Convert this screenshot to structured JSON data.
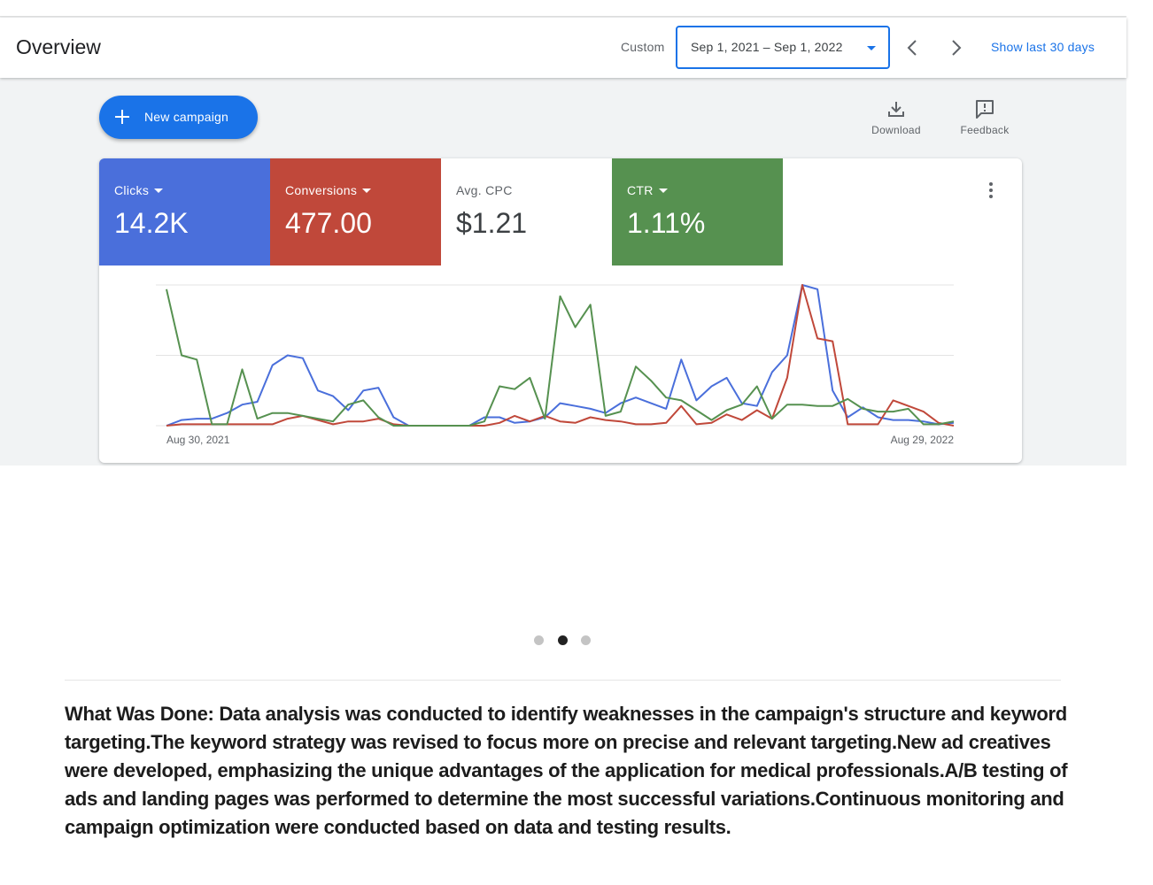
{
  "header": {
    "title": "Overview",
    "range_label": "Custom",
    "date_range": "Sep 1, 2021 – Sep 1, 2022",
    "quick_range_link": "Show last 30 days"
  },
  "toolbar": {
    "new_campaign_label": "New campaign",
    "download_label": "Download",
    "feedback_label": "Feedback"
  },
  "metrics": [
    {
      "name": "Clicks",
      "value": "14.2K",
      "color": "#4a6fdb"
    },
    {
      "name": "Conversions",
      "value": "477.00",
      "color": "#c0483a"
    },
    {
      "name": "Avg. CPC",
      "value": "$1.21",
      "color": "#ffffff"
    },
    {
      "name": "CTR",
      "value": "1.11%",
      "color": "#569150"
    }
  ],
  "chart_data": {
    "type": "line",
    "x_start_label": "Aug 30, 2021",
    "x_end_label": "Aug 29, 2022",
    "ylim": [
      0,
      100
    ],
    "grid": true,
    "legend": "none",
    "series": [
      {
        "color": "#4a6fdb",
        "values": [
          0,
          4,
          5,
          5,
          9,
          15,
          17,
          43,
          50,
          48,
          25,
          21,
          11,
          25,
          27,
          6,
          0,
          0,
          0,
          0,
          0,
          6,
          6,
          2,
          3,
          6,
          16,
          14,
          12,
          9,
          16,
          20,
          16,
          12,
          47,
          18,
          28,
          34,
          16,
          14,
          38,
          50,
          100,
          97,
          25,
          6,
          13,
          6,
          4,
          4,
          3,
          1,
          2
        ]
      },
      {
        "color": "#c0483a",
        "values": [
          0,
          1,
          1,
          1,
          1,
          1,
          1,
          1,
          5,
          7,
          4,
          1,
          3,
          3,
          5,
          1,
          0,
          0,
          0,
          0,
          0,
          0,
          2,
          7,
          3,
          7,
          3,
          2,
          6,
          4,
          3,
          1,
          1,
          2,
          14,
          1,
          2,
          8,
          4,
          11,
          5,
          34,
          100,
          62,
          60,
          1,
          1,
          1,
          18,
          14,
          10,
          2,
          0
        ]
      },
      {
        "color": "#569150",
        "values": [
          97,
          50,
          47,
          1,
          1,
          40,
          5,
          9,
          9,
          7,
          5,
          3,
          15,
          18,
          6,
          0,
          0,
          0,
          0,
          0,
          0,
          3,
          28,
          26,
          34,
          5,
          92,
          70,
          86,
          7,
          10,
          42,
          32,
          20,
          18,
          11,
          4,
          11,
          15,
          28,
          5,
          15,
          15,
          14,
          14,
          19,
          12,
          10,
          10,
          12,
          1,
          1,
          3
        ]
      }
    ]
  },
  "description": "What Was Done: Data analysis was conducted to identify weaknesses in the campaign's structure and keyword targeting.The keyword strategy was revised to focus more on precise and relevant targeting.New ad creatives were developed, emphasizing the unique advantages of the application for medical professionals.A/B testing of ads and landing pages was performed to determine the most successful variations.Continuous monitoring and campaign optimization were conducted based on data and testing results."
}
